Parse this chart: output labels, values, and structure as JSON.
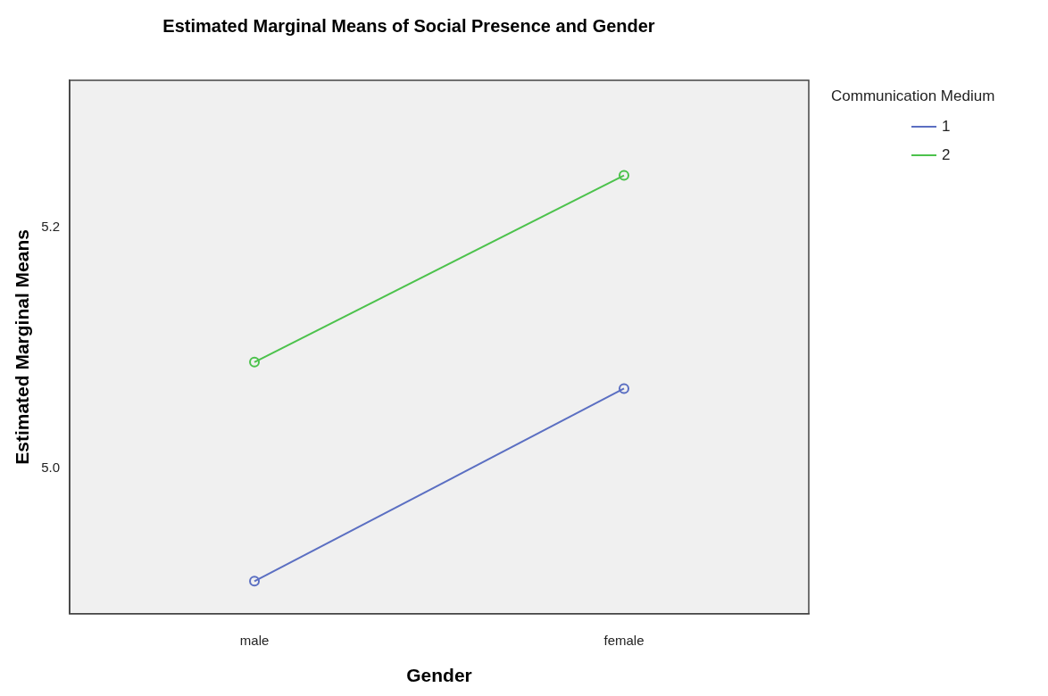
{
  "chart_data": {
    "type": "line",
    "title": "Estimated Marginal Means of Social Presence and Gender",
    "xlabel": "Gender",
    "ylabel": "Estimated Marginal Means",
    "legend_title": "Communication Medium",
    "legend": "top right",
    "marker": "circle",
    "categories": [
      "male",
      "female"
    ],
    "series": [
      {
        "name": "1",
        "color": "#5b6fc2",
        "values": [
          4.906,
          5.066
        ]
      },
      {
        "name": "2",
        "color": "#4cc24c",
        "values": [
          5.088,
          5.243
        ]
      }
    ],
    "ylim": [
      4.879,
      5.322
    ],
    "yticks": [
      {
        "value": 5,
        "label": "5.0"
      },
      5.2
    ]
  }
}
